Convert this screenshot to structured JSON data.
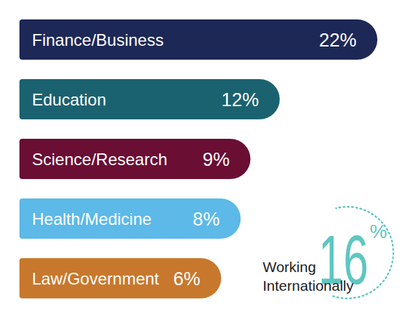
{
  "chart_data": {
    "type": "bar",
    "orientation": "horizontal",
    "categories": [
      "Finance/Business",
      "Education",
      "Science/Research",
      "Health/Medicine",
      "Law/Government"
    ],
    "values": [
      22,
      12,
      9,
      8,
      6
    ],
    "value_labels": [
      "22%",
      "12%",
      "9%",
      "8%",
      "6%"
    ],
    "colors": [
      "#1d2856",
      "#1b6270",
      "#6a0e34",
      "#5cb9e8",
      "#c8782c"
    ],
    "data_labels": true,
    "tick_labels": false,
    "annotations": [
      {
        "label": "16%",
        "text": "Working Internationally",
        "color": "#5fc6c1"
      }
    ]
  }
}
